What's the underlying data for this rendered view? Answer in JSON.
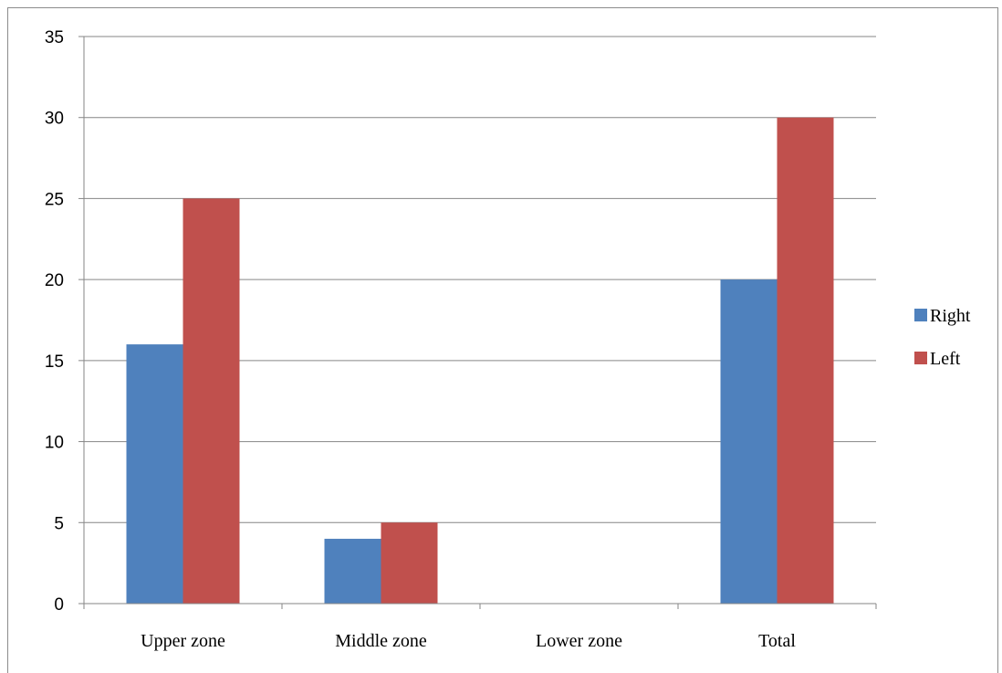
{
  "chart_data": {
    "type": "bar",
    "title": "",
    "xlabel": "",
    "ylabel": "",
    "categories": [
      "Upper zone",
      "Middle zone",
      "Lower zone",
      "Total"
    ],
    "series": [
      {
        "name": "Right",
        "values": [
          16,
          4,
          0,
          20
        ],
        "color": "#4f81bd"
      },
      {
        "name": "Left",
        "values": [
          25,
          5,
          0,
          30
        ],
        "color": "#c0504d"
      }
    ],
    "ylim": [
      0,
      35
    ],
    "yticks": [
      "0",
      "5",
      "10",
      "15",
      "20",
      "25",
      "30",
      "35"
    ],
    "grid": true,
    "legend": "right"
  }
}
